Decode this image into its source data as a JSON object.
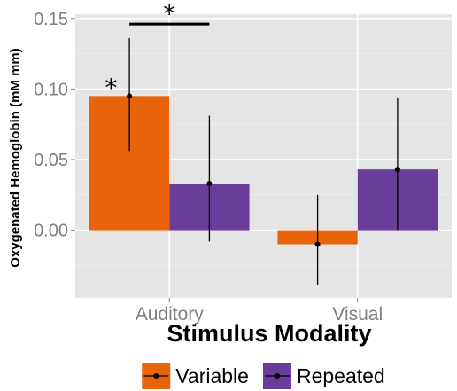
{
  "chart_data": {
    "type": "bar",
    "title": "",
    "xlabel": "Stimulus Modality",
    "ylabel": "Oxygenated Hemoglobin (mM mm)",
    "categories": [
      "Auditory",
      "Visual"
    ],
    "series": [
      {
        "name": "Variable",
        "color": "#e8630a",
        "values": [
          0.095,
          -0.01
        ],
        "error_lower": [
          0.056,
          -0.039
        ],
        "error_upper": [
          0.136,
          0.025
        ]
      },
      {
        "name": "Repeated",
        "color": "#6a3d9a",
        "values": [
          0.033,
          0.043
        ],
        "error_lower": [
          -0.008,
          0.0
        ],
        "error_upper": [
          0.081,
          0.094
        ]
      }
    ],
    "ylim": [
      -0.048,
      0.153
    ],
    "yticks": [
      0.0,
      0.05,
      0.1,
      0.15
    ],
    "ytick_labels": [
      "0.00",
      "0.05",
      "0.10",
      "0.15"
    ],
    "grid": true,
    "panel_background": "#e5e5e5",
    "legend_position": "bottom",
    "annotations": [
      {
        "text": "*",
        "kind": "bar-significance",
        "category": "Auditory",
        "series": "Variable"
      },
      {
        "text": "*",
        "kind": "between-bracket",
        "category": "Auditory",
        "series_from": "Variable",
        "series_to": "Repeated"
      }
    ]
  }
}
